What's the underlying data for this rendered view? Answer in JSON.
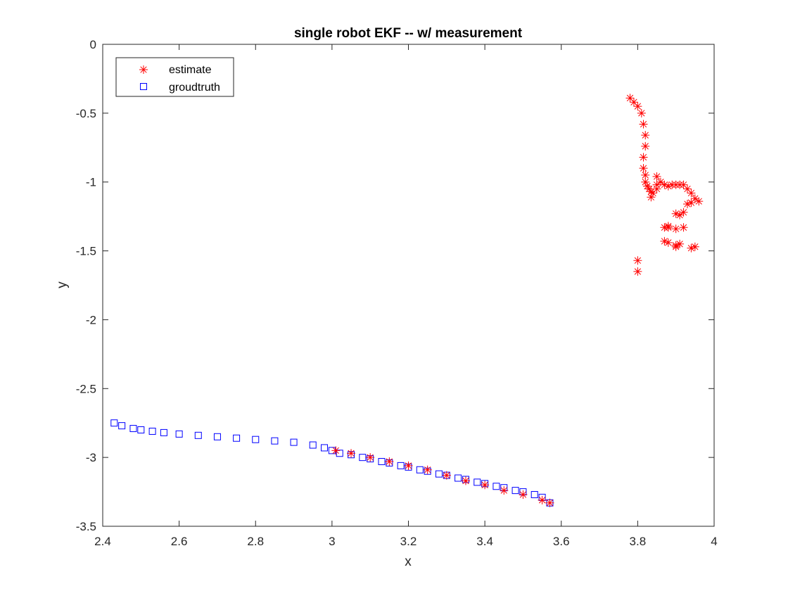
{
  "chart_data": {
    "type": "scatter",
    "title": "single robot EKF -- w/ measurement",
    "xlabel": "x",
    "ylabel": "y",
    "xlim": [
      2.4,
      4
    ],
    "ylim": [
      -3.5,
      0
    ],
    "xticks": [
      "2.4",
      "2.6",
      "2.8",
      "3",
      "3.2",
      "3.4",
      "3.6",
      "3.8",
      "4"
    ],
    "yticks": [
      "0",
      "-0.5",
      "-1",
      "-1.5",
      "-2",
      "-2.5",
      "-3",
      "-3.5"
    ],
    "grid": false,
    "legend_position": "top-left",
    "series": [
      {
        "name": "estimate",
        "marker": "asterisk",
        "color": "#ff0000",
        "x": [
          3.78,
          3.79,
          3.8,
          3.81,
          3.815,
          3.82,
          3.82,
          3.815,
          3.815,
          3.82,
          3.82,
          3.825,
          3.83,
          3.835,
          3.84,
          3.85,
          3.85,
          3.835,
          3.85,
          3.86,
          3.87,
          3.88,
          3.89,
          3.9,
          3.91,
          3.92,
          3.93,
          3.94,
          3.95,
          3.96,
          3.94,
          3.93,
          3.92,
          3.91,
          3.9,
          3.88,
          3.87,
          3.88,
          3.9,
          3.92,
          3.91,
          3.9,
          3.88,
          3.87,
          3.9,
          3.94,
          3.95,
          3.8,
          3.8,
          3.01,
          3.05,
          3.1,
          3.15,
          3.2,
          3.25,
          3.3,
          3.35,
          3.4,
          3.45,
          3.5,
          3.55,
          3.57
        ],
        "y": [
          -0.39,
          -0.42,
          -0.45,
          -0.5,
          -0.58,
          -0.66,
          -0.74,
          -0.82,
          -0.9,
          -0.95,
          -1.0,
          -1.03,
          -1.05,
          -1.07,
          -1.08,
          -1.05,
          -0.96,
          -1.11,
          -1.02,
          -1.0,
          -1.02,
          -1.03,
          -1.02,
          -1.02,
          -1.02,
          -1.02,
          -1.05,
          -1.08,
          -1.12,
          -1.14,
          -1.15,
          -1.16,
          -1.22,
          -1.24,
          -1.23,
          -1.32,
          -1.33,
          -1.33,
          -1.34,
          -1.33,
          -1.45,
          -1.46,
          -1.44,
          -1.43,
          -1.47,
          -1.48,
          -1.47,
          -1.57,
          -1.65,
          -2.95,
          -2.97,
          -3.0,
          -3.03,
          -3.06,
          -3.09,
          -3.13,
          -3.17,
          -3.2,
          -3.24,
          -3.27,
          -3.31,
          -3.33
        ]
      },
      {
        "name": "groudtruth",
        "marker": "square",
        "color": "#0000ff",
        "x": [
          2.43,
          2.45,
          2.48,
          2.5,
          2.53,
          2.56,
          2.6,
          2.65,
          2.7,
          2.75,
          2.8,
          2.85,
          2.9,
          2.95,
          2.98,
          3.0,
          3.02,
          3.05,
          3.08,
          3.1,
          3.13,
          3.15,
          3.18,
          3.2,
          3.23,
          3.25,
          3.28,
          3.3,
          3.33,
          3.35,
          3.38,
          3.4,
          3.43,
          3.45,
          3.48,
          3.5,
          3.53,
          3.55,
          3.57
        ],
        "y": [
          -2.75,
          -2.77,
          -2.79,
          -2.8,
          -2.81,
          -2.82,
          -2.83,
          -2.84,
          -2.85,
          -2.86,
          -2.87,
          -2.88,
          -2.89,
          -2.91,
          -2.93,
          -2.95,
          -2.97,
          -2.98,
          -3.0,
          -3.01,
          -3.03,
          -3.04,
          -3.06,
          -3.07,
          -3.09,
          -3.1,
          -3.12,
          -3.13,
          -3.15,
          -3.16,
          -3.18,
          -3.19,
          -3.21,
          -3.22,
          -3.24,
          -3.25,
          -3.27,
          -3.29,
          -3.33
        ]
      }
    ]
  }
}
